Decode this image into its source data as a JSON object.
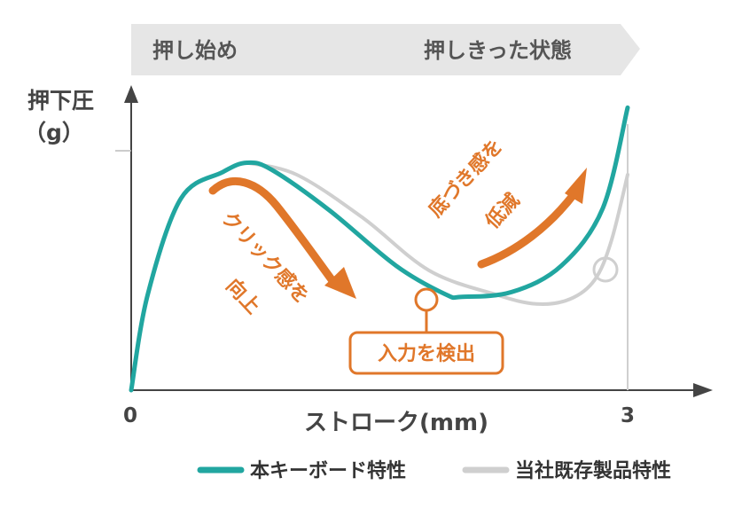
{
  "header": {
    "start_label": "押し始め",
    "end_label": "押しきった状態"
  },
  "chart_data": {
    "type": "line",
    "ylabel_line1": "押下圧",
    "ylabel_line2": "（g）",
    "xlabel": "ストローク(mm)",
    "x_ticks": [
      "0",
      "3"
    ],
    "xlim": [
      0,
      3
    ],
    "ylim": [
      0,
      100
    ],
    "series": [
      {
        "name": "本キーボード特性",
        "color": "#21a6a0",
        "x": [
          0,
          0.1,
          0.3,
          0.55,
          0.7,
          0.85,
          1.2,
          1.6,
          1.9,
          2.0,
          2.3,
          2.6,
          2.85,
          3.0
        ],
        "y": [
          0,
          40,
          80,
          91,
          95,
          92,
          75,
          52,
          40,
          39,
          41,
          52,
          76,
          118
        ]
      },
      {
        "name": "当社既存製品特性",
        "color": "#cfcfcf",
        "x": [
          0.7,
          1.0,
          1.4,
          1.8,
          2.2,
          2.45,
          2.65,
          2.8,
          2.9,
          3.0
        ],
        "y": [
          95,
          90,
          72,
          50,
          40,
          36,
          38,
          46,
          62,
          90
        ]
      }
    ],
    "annotations": {
      "click_text_1": "クリック感を",
      "click_text_2": "向上",
      "bottom_text_1": "底づき感を",
      "bottom_text_2": "低減",
      "detect_label": "入力を検出"
    },
    "accent_color": "#e0772a"
  }
}
